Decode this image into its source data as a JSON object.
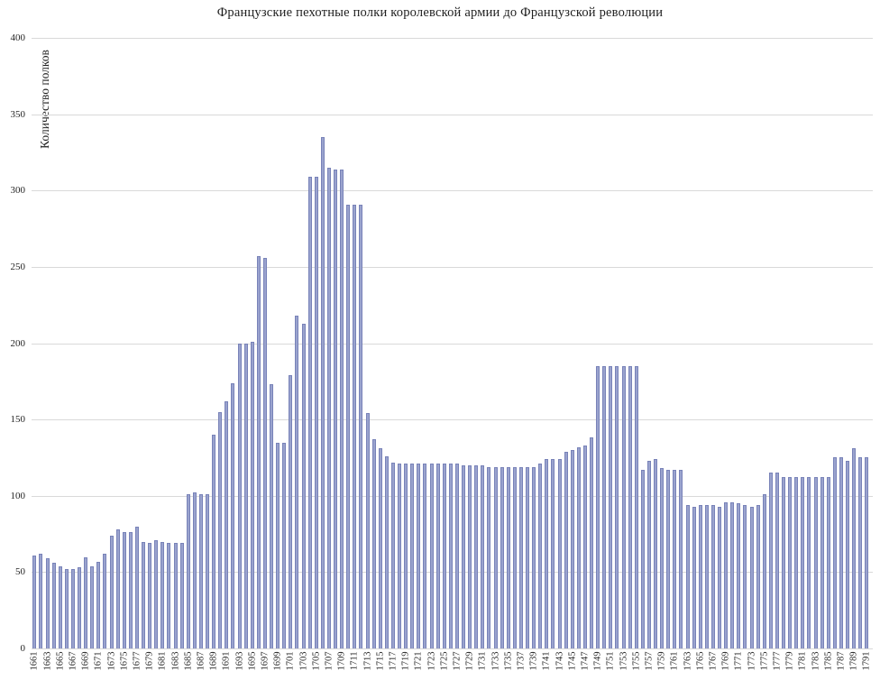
{
  "title": "Французские пехотные полки королевской армии до Французской революции",
  "y_axis": {
    "label": "Количество полков"
  },
  "chart_data": {
    "type": "bar",
    "title": "Французские пехотные полки королевской армии до Французской революции",
    "xlabel": "",
    "ylabel": "Количество полков",
    "ylim": [
      0,
      400
    ],
    "y_ticks": [
      0,
      50,
      100,
      150,
      200,
      250,
      300,
      350,
      400
    ],
    "x_tick_interval": 2,
    "grid": true,
    "legend": false,
    "bar_color": "#9aa3ce",
    "bar_border_color": "#7882b8",
    "grid_color": "#d9d9d9",
    "x": [
      1661,
      1662,
      1663,
      1664,
      1665,
      1666,
      1667,
      1668,
      1669,
      1670,
      1671,
      1672,
      1673,
      1674,
      1675,
      1676,
      1677,
      1678,
      1679,
      1680,
      1681,
      1682,
      1683,
      1684,
      1685,
      1686,
      1687,
      1688,
      1689,
      1690,
      1691,
      1692,
      1693,
      1694,
      1695,
      1696,
      1697,
      1698,
      1699,
      1700,
      1701,
      1702,
      1703,
      1704,
      1705,
      1706,
      1707,
      1708,
      1709,
      1710,
      1711,
      1712,
      1713,
      1714,
      1715,
      1716,
      1717,
      1718,
      1719,
      1720,
      1721,
      1722,
      1723,
      1724,
      1725,
      1726,
      1727,
      1728,
      1729,
      1730,
      1731,
      1732,
      1733,
      1734,
      1735,
      1736,
      1737,
      1738,
      1739,
      1740,
      1741,
      1742,
      1743,
      1744,
      1745,
      1746,
      1747,
      1748,
      1749,
      1750,
      1751,
      1752,
      1753,
      1754,
      1755,
      1756,
      1757,
      1758,
      1759,
      1760,
      1761,
      1762,
      1763,
      1764,
      1765,
      1766,
      1767,
      1768,
      1769,
      1770,
      1771,
      1772,
      1773,
      1774,
      1775,
      1776,
      1777,
      1778,
      1779,
      1780,
      1781,
      1782,
      1783,
      1784,
      1785,
      1786,
      1787,
      1788,
      1789,
      1790,
      1791
    ],
    "values": [
      61,
      62,
      59,
      56,
      54,
      52,
      52,
      53,
      60,
      54,
      57,
      62,
      74,
      78,
      76,
      76,
      80,
      70,
      69,
      71,
      70,
      69,
      69,
      69,
      101,
      102,
      101,
      101,
      140,
      155,
      162,
      174,
      200,
      200,
      201,
      257,
      256,
      173,
      135,
      135,
      179,
      218,
      213,
      309,
      309,
      335,
      315,
      314,
      314,
      291,
      291,
      291,
      154,
      137,
      131,
      126,
      122,
      121,
      121,
      121,
      121,
      121,
      121,
      121,
      121,
      121,
      121,
      120,
      120,
      120,
      120,
      119,
      119,
      119,
      119,
      119,
      119,
      119,
      119,
      121,
      124,
      124,
      124,
      129,
      130,
      132,
      133,
      138,
      185,
      185,
      185,
      185,
      185,
      185,
      185,
      117,
      123,
      124,
      118,
      117,
      117,
      117,
      94,
      93,
      94,
      94,
      94,
      93,
      96,
      96,
      95,
      94,
      93,
      94,
      101,
      115,
      115,
      112,
      112,
      112,
      112,
      112,
      112,
      112,
      112,
      125,
      125,
      123,
      131,
      125,
      125
    ]
  }
}
